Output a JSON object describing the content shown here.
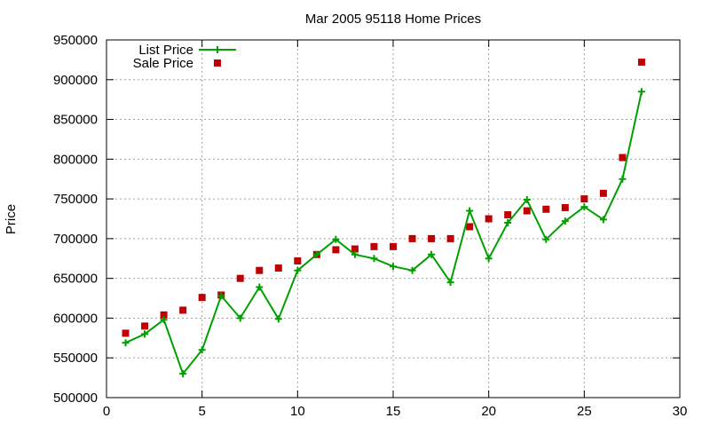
{
  "chart_data": {
    "type": "line",
    "title": "Mar 2005 95118 Home Prices",
    "xlabel": "",
    "ylabel": "Price",
    "xlim": [
      0,
      30
    ],
    "ylim": [
      500000,
      950000
    ],
    "x_ticks": [
      0,
      5,
      10,
      15,
      20,
      25,
      30
    ],
    "y_ticks": [
      500000,
      550000,
      600000,
      650000,
      700000,
      750000,
      800000,
      850000,
      900000,
      950000
    ],
    "grid": true,
    "legend_position": "top-left",
    "series": [
      {
        "name": "List Price",
        "style": "line-with-plus-markers",
        "color": "#00a000",
        "points": [
          [
            1,
            569000
          ],
          [
            2,
            580000
          ],
          [
            3,
            598000
          ],
          [
            4,
            530000
          ],
          [
            5,
            560000
          ],
          [
            6,
            628000
          ],
          [
            7,
            600000
          ],
          [
            8,
            639000
          ],
          [
            9,
            599000
          ],
          [
            10,
            660000
          ],
          [
            11,
            680000
          ],
          [
            12,
            699000
          ],
          [
            13,
            680000
          ],
          [
            14,
            675000
          ],
          [
            15,
            665000
          ],
          [
            16,
            660000
          ],
          [
            17,
            680000
          ],
          [
            18,
            645000
          ],
          [
            19,
            735000
          ],
          [
            20,
            675000
          ],
          [
            21,
            720000
          ],
          [
            22,
            749000
          ],
          [
            23,
            699000
          ],
          [
            24,
            722000
          ],
          [
            25,
            740000
          ],
          [
            26,
            724000
          ],
          [
            27,
            775000
          ],
          [
            28,
            885000
          ]
        ]
      },
      {
        "name": "Sale Price",
        "style": "square-markers",
        "color": "#c00000",
        "points": [
          [
            1,
            581000
          ],
          [
            2,
            590000
          ],
          [
            3,
            604000
          ],
          [
            4,
            610000
          ],
          [
            5,
            626000
          ],
          [
            6,
            629000
          ],
          [
            7,
            650000
          ],
          [
            8,
            660000
          ],
          [
            9,
            663000
          ],
          [
            10,
            672000
          ],
          [
            11,
            680000
          ],
          [
            12,
            686000
          ],
          [
            13,
            687000
          ],
          [
            14,
            690000
          ],
          [
            15,
            690000
          ],
          [
            16,
            700000
          ],
          [
            17,
            700000
          ],
          [
            18,
            700000
          ],
          [
            19,
            715000
          ],
          [
            20,
            725000
          ],
          [
            21,
            730000
          ],
          [
            22,
            735000
          ],
          [
            23,
            737000
          ],
          [
            24,
            739000
          ],
          [
            25,
            750000
          ],
          [
            26,
            757000
          ],
          [
            27,
            802000
          ],
          [
            28,
            922000
          ]
        ]
      }
    ]
  }
}
